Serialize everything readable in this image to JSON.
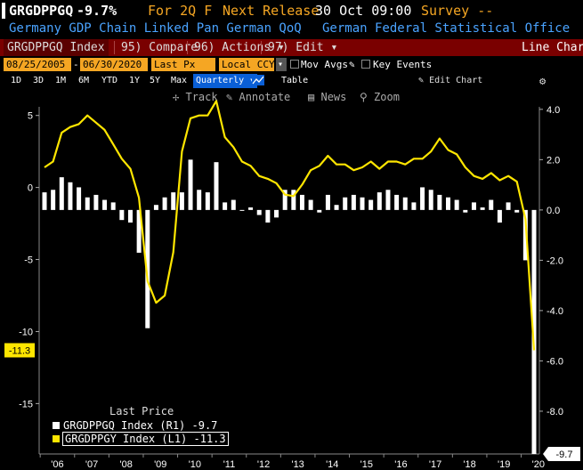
{
  "header": {
    "ticker": "GRGDPPGQ",
    "last_value": "-9.7%",
    "period": "For 2Q F",
    "next_release_label": "Next Release",
    "next_release": "30 Oct 09:00",
    "survey": "Survey --",
    "description": "Germany GDP Chain Linked Pan German QoQ",
    "source": "German Federal Statistical Office"
  },
  "menu": {
    "index_name": "GRGDPPGQ Index",
    "compare": "95) Compare",
    "actions": "96) Actions",
    "edit": "97) Edit",
    "chart_type": "Line Chart"
  },
  "controls": {
    "start_date": "08/25/2005",
    "end_date": "06/30/2020",
    "field": "Last Px",
    "currency": "Local CCY",
    "mov_avgs": "Mov Avgs",
    "key_events": "Key Events",
    "ranges": [
      "1D",
      "3D",
      "1M",
      "6M",
      "YTD",
      "1Y",
      "5Y",
      "Max"
    ],
    "frequency": "Quarterly",
    "table": "Table",
    "edit_chart": "Edit Chart",
    "track": "Track",
    "annotate": "Annotate",
    "news": "News",
    "zoom": "Zoom"
  },
  "legend": {
    "title": "Last Price",
    "items": [
      {
        "text": "GRGDPPGQ Index  (R1)  -9.7",
        "color": "#ffffff"
      },
      {
        "text": "GRGDPPGY Index  (L1) -11.3",
        "color": "#ffe600"
      }
    ]
  },
  "chart_data": {
    "type": "bar",
    "x_tick_labels": [
      "'06",
      "'07",
      "'08",
      "'09",
      "'10",
      "'11",
      "'12",
      "'13",
      "'14",
      "'15",
      "'16",
      "'17",
      "'18",
      "'19",
      "'20"
    ],
    "left_axis": {
      "ticks": [
        5,
        0,
        -5,
        -10,
        -15
      ],
      "range": [
        -18.5,
        5.6
      ],
      "last_label": "-11.3",
      "color": "#ffe600"
    },
    "right_axis": {
      "ticks": [
        "4.0",
        "2.0",
        "0.0",
        "-2.0",
        "-4.0",
        "-6.0",
        "-8.0"
      ],
      "range": [
        -9.7,
        4.1
      ],
      "last_label": "-9.7",
      "color": "#ffffff"
    },
    "series": [
      {
        "name": "GRGDPPGQ Index",
        "axis": "right",
        "type": "bar",
        "color": "#ffffff",
        "values": [
          0.7,
          0.8,
          1.3,
          1.1,
          0.9,
          0.5,
          0.6,
          0.4,
          0.3,
          -0.4,
          -0.5,
          -1.7,
          -4.7,
          0.2,
          0.5,
          0.7,
          0.7,
          2.0,
          0.8,
          0.7,
          1.9,
          0.3,
          0.4,
          0.0,
          0.1,
          -0.2,
          -0.5,
          -0.3,
          0.8,
          0.8,
          0.6,
          0.4,
          -0.1,
          0.6,
          0.2,
          0.5,
          0.6,
          0.5,
          0.4,
          0.7,
          0.8,
          0.6,
          0.5,
          0.3,
          0.9,
          0.8,
          0.6,
          0.5,
          0.4,
          -0.1,
          0.3,
          0.1,
          0.4,
          -0.5,
          0.3,
          -0.1,
          -2.0,
          -9.7
        ]
      },
      {
        "name": "GRGDPPGY Index",
        "axis": "left",
        "type": "line",
        "color": "#ffe600",
        "values": [
          1.4,
          1.8,
          3.8,
          4.2,
          4.4,
          5.0,
          4.5,
          4.0,
          3.0,
          2.0,
          1.3,
          -0.7,
          -6.5,
          -8.0,
          -7.5,
          -4.5,
          2.5,
          4.8,
          5.0,
          5.0,
          6.0,
          3.5,
          2.8,
          1.8,
          1.5,
          0.8,
          0.6,
          0.3,
          -0.5,
          -0.6,
          0.2,
          1.2,
          1.5,
          2.2,
          1.6,
          1.6,
          1.2,
          1.4,
          1.8,
          1.3,
          1.8,
          1.8,
          1.6,
          2.0,
          2.0,
          2.5,
          3.4,
          2.6,
          2.3,
          1.4,
          0.8,
          0.6,
          1.0,
          0.5,
          0.8,
          0.4,
          -2.2,
          -11.3
        ]
      }
    ]
  }
}
